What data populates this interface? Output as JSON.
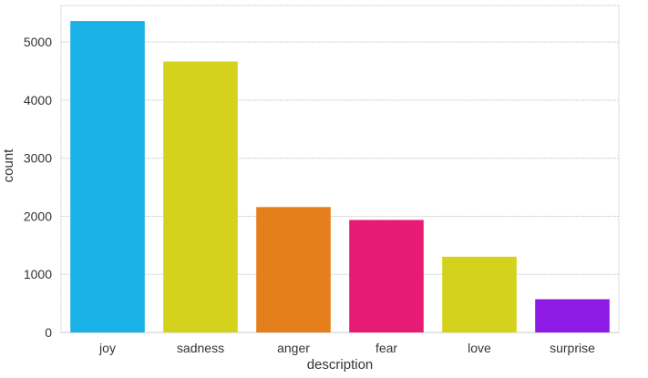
{
  "chart_data": {
    "type": "bar",
    "title": "",
    "xlabel": "description",
    "ylabel": "count",
    "categories": [
      "joy",
      "sadness",
      "anger",
      "fear",
      "love",
      "surprise"
    ],
    "values": [
      5362,
      4666,
      2159,
      1937,
      1304,
      572
    ],
    "colors": [
      "#1ab1e6",
      "#d4d21c",
      "#e57f1b",
      "#e71b76",
      "#d4d21c",
      "#8e1be6"
    ],
    "ylim": [
      0,
      5630
    ],
    "yticks": [
      0,
      1000,
      2000,
      3000,
      4000,
      5000
    ],
    "grid": true,
    "grid_color": "#c8c8c8",
    "legend": "none"
  }
}
